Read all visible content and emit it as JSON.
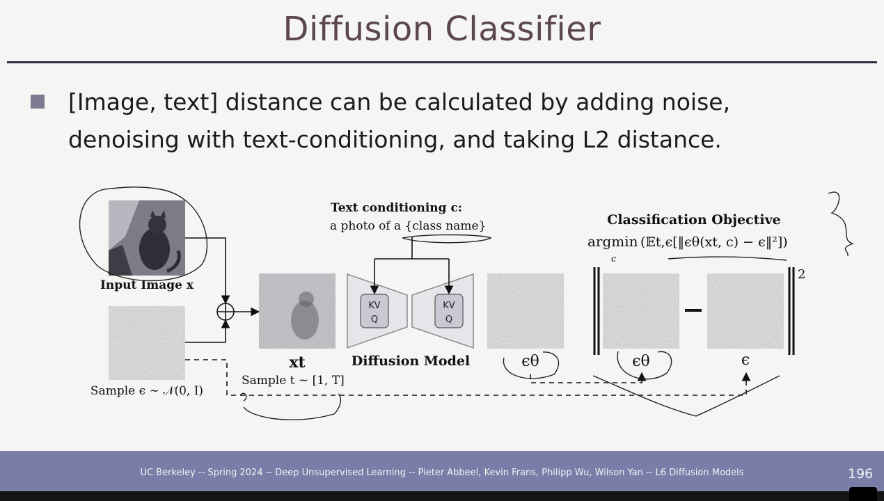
{
  "slide": {
    "title": "Diffusion Classifier",
    "bullet": "[Image, text] distance can be calculated by adding noise, denoising with text-conditioning, and taking L2 distance."
  },
  "diagram": {
    "text_conditioning_label": "Text conditioning c:",
    "text_conditioning_prompt": "a photo of a {class name}",
    "objective_title": "Classification Objective",
    "objective_argmin": "argmin",
    "objective_sub": "c",
    "objective_formula": "(𝔼t,ϵ[‖ϵθ(xt, c) − ϵ‖²])",
    "input_image_label": "Input Image x",
    "noise_sample_label": "Sample ϵ ∼ 𝒩(0, I)",
    "xt_label": "xt",
    "t_sample_label": "Sample t ∼ [1, T]",
    "diffusion_model_label": "Diffusion Model",
    "kv_label": "KV",
    "q_label": "Q",
    "eps_theta_label": "ϵθ",
    "eps_label": "ϵ",
    "minus_label": "—",
    "squared_label": "2"
  },
  "footer": {
    "text": "UC Berkeley -- Spring 2024 -- Deep Unsupervised Learning -- Pieter Abbeel, Kevin Frans, Philipp Wu, Wilson Yan  -- L6 Diffusion Models",
    "page_number": "196"
  }
}
